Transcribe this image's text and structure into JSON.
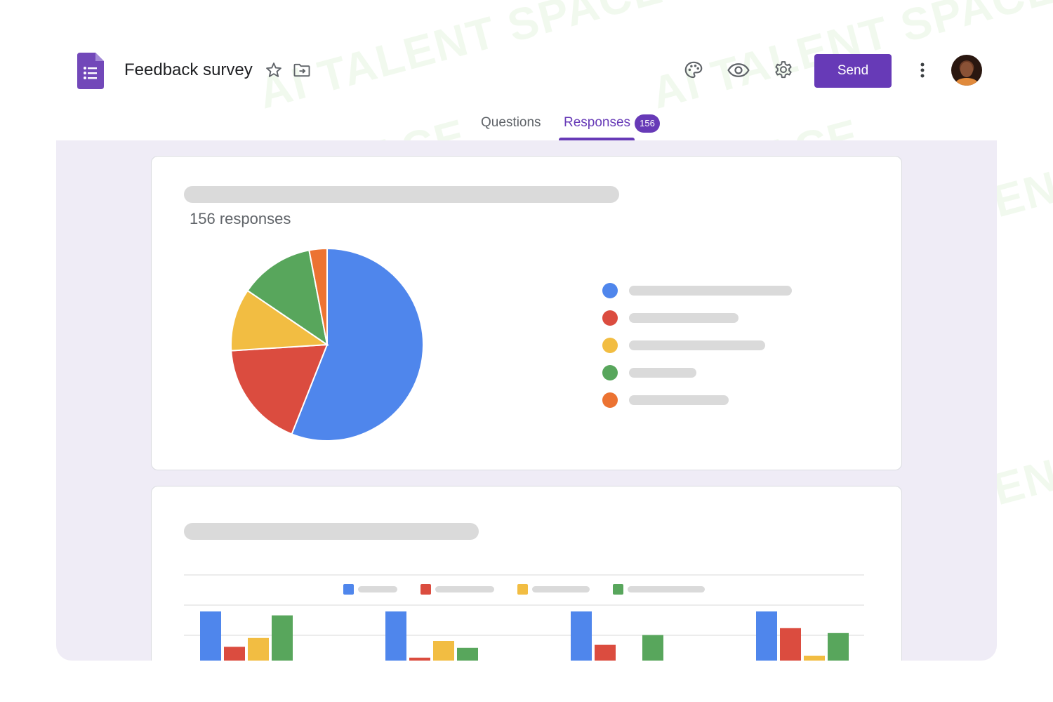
{
  "header": {
    "title": "Feedback survey",
    "send_label": "Send",
    "icons": [
      "forms-logo-icon",
      "star-icon",
      "move-to-folder-icon",
      "palette-icon",
      "eye-icon",
      "gear-icon",
      "more-vert-icon",
      "avatar"
    ]
  },
  "tabs": {
    "questions": "Questions",
    "responses": "Responses",
    "responses_count": "156"
  },
  "pie_card": {
    "response_count": "156 responses"
  },
  "watermark": {
    "text": "AI TALENT SPACE"
  },
  "colors": {
    "accent": "#673ab7",
    "blue": "#4f86ec",
    "red": "#db4c3f",
    "yellow": "#f2bd42",
    "green": "#58a65c",
    "orange": "#ec7332"
  },
  "chart_data": [
    {
      "type": "pie",
      "title": "",
      "slices": [
        {
          "color": "#4f86ec",
          "value": 56.0
        },
        {
          "color": "#db4c3f",
          "value": 18.0
        },
        {
          "color": "#f2bd42",
          "value": 10.5
        },
        {
          "color": "#58a65c",
          "value": 12.5
        },
        {
          "color": "#ec7332",
          "value": 3.0
        }
      ],
      "legend": "right"
    },
    {
      "type": "bar",
      "title": "",
      "categories": [
        "",
        "",
        "",
        ""
      ],
      "series": [
        {
          "color": "#4f86ec",
          "values": [
            100,
            100,
            100,
            100
          ]
        },
        {
          "color": "#db4c3f",
          "values": [
            28,
            6,
            32,
            66
          ]
        },
        {
          "color": "#f2bd42",
          "values": [
            46,
            40,
            0,
            10
          ]
        },
        {
          "color": "#58a65c",
          "values": [
            92,
            26,
            52,
            56
          ]
        }
      ],
      "ylim": [
        0,
        100
      ],
      "legend": "top",
      "grid": true
    }
  ]
}
